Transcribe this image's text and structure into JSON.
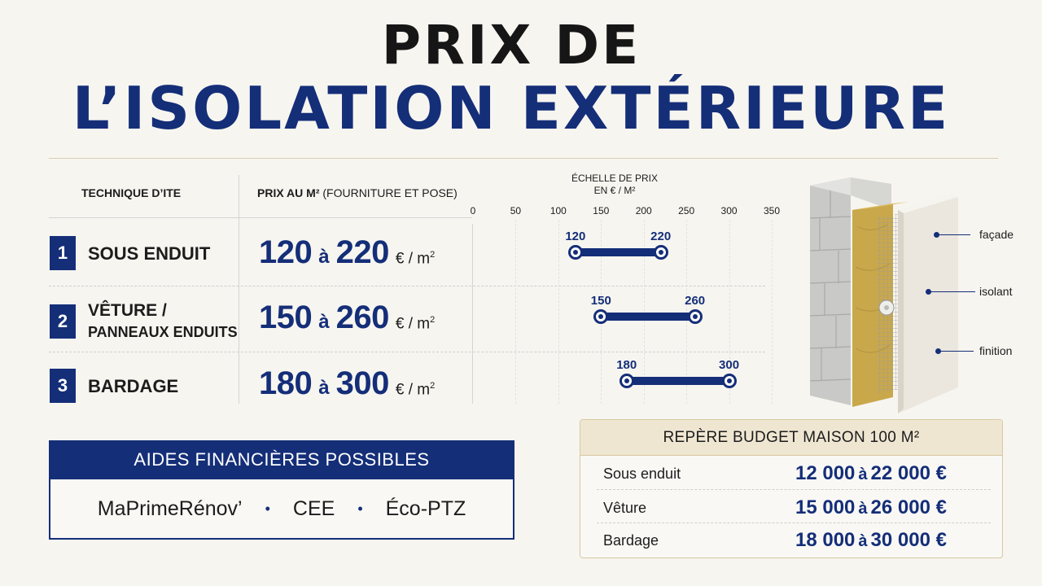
{
  "title": {
    "line1": "PRIX DE",
    "line2": "L’ISOLATION EXTÉRIEURE"
  },
  "table": {
    "header_technique": "TECHNIQUE D’ITE",
    "header_price_main": "PRIX AU M²",
    "header_price_sub": " (FOURNITURE ET POSE)",
    "rows": [
      {
        "num": "1",
        "tech1": "SOUS ENDUIT",
        "tech2": "",
        "min": "120",
        "sep": "à",
        "max": "220",
        "unit": "€ / m"
      },
      {
        "num": "2",
        "tech1": "VÊTURE /",
        "tech2": "PANNEAUX ENDUITS",
        "min": "150",
        "sep": "à",
        "max": "260",
        "unit": "€ / m"
      },
      {
        "num": "3",
        "tech1": "BARDAGE",
        "tech2": "",
        "min": "180",
        "sep": "à",
        "max": "300",
        "unit": "€ / m"
      }
    ],
    "unit_sup": "2"
  },
  "chart_data": {
    "type": "bar",
    "title": "ÉCHELLE DE PRIX",
    "subtitle": "EN € / M²",
    "ticks": [
      0,
      50,
      100,
      150,
      200,
      250,
      300,
      350
    ],
    "xlim": [
      0,
      350
    ],
    "ranges": [
      {
        "min": 120,
        "max": 220
      },
      {
        "min": 150,
        "max": 260
      },
      {
        "min": 180,
        "max": 300
      }
    ],
    "colors": {
      "bar": "#142e78"
    }
  },
  "aides": {
    "title": "AIDES FINANCIÈRES POSSIBLES",
    "items": [
      "MaPrimeRénov’",
      "CEE",
      "Éco-PTZ"
    ],
    "separator": "•"
  },
  "budget": {
    "title": "REPÈRE BUDGET MAISON 100 M²",
    "rows": [
      {
        "label": "Sous enduit",
        "min": "12 000",
        "sep": "à",
        "max": "22 000 €"
      },
      {
        "label": "Vêture",
        "min": "15 000",
        "sep": "à",
        "max": "26 000 €"
      },
      {
        "label": "Bardage",
        "min": "18 000",
        "sep": "à",
        "max": "30 000 €"
      }
    ]
  },
  "illustration": {
    "labels": [
      "façade",
      "isolant",
      "finition"
    ]
  },
  "colors": {
    "primary": "#142e78",
    "background": "#f7f5f0",
    "insulation": "#c9a84b"
  }
}
